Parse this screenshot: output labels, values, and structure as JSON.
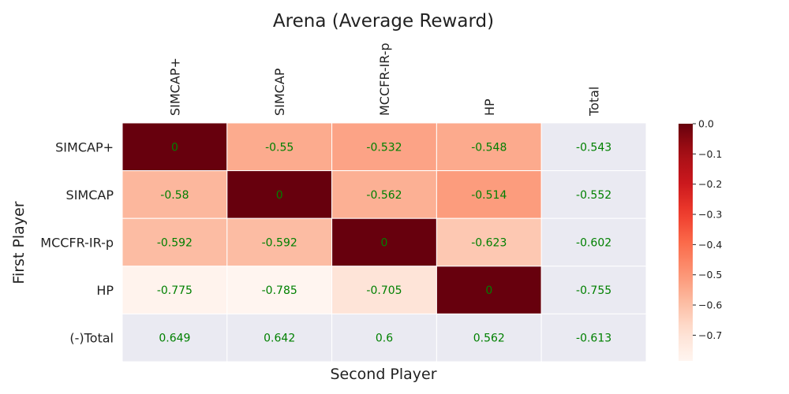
{
  "chart_data": {
    "type": "heatmap",
    "title": "Arena (Average Reward)",
    "xlabel": "Second Player",
    "ylabel": "First Player",
    "x_categories": [
      "SIMCAP+",
      "SIMCAP",
      "MCCFR-IR-p",
      "HP",
      "Total"
    ],
    "y_categories": [
      "SIMCAP+",
      "SIMCAP",
      "MCCFR-IR-p",
      "HP",
      "(-)Total"
    ],
    "values": [
      [
        0,
        -0.55,
        -0.532,
        -0.548
      ],
      [
        -0.58,
        0,
        -0.562,
        -0.514
      ],
      [
        -0.592,
        -0.592,
        0,
        -0.623
      ],
      [
        -0.775,
        -0.785,
        -0.705,
        0
      ]
    ],
    "labels": [
      [
        "0",
        "-0.55",
        "-0.532",
        "-0.548",
        "-0.543"
      ],
      [
        "-0.58",
        "0",
        "-0.562",
        "-0.514",
        "-0.552"
      ],
      [
        "-0.592",
        "-0.592",
        "0",
        "-0.623",
        "-0.602"
      ],
      [
        "-0.775",
        "-0.785",
        "-0.705",
        "0",
        "-0.755"
      ],
      [
        "0.649",
        "0.642",
        "0.6",
        "0.562",
        "-0.613"
      ]
    ],
    "totals_column": [
      -0.543,
      -0.552,
      -0.602,
      -0.755
    ],
    "totals_row": [
      0.649,
      0.642,
      0.6,
      0.562
    ],
    "grand_total": -0.613,
    "colormap": "Reds_r",
    "vmin": -0.785,
    "vmax": 0.0,
    "colorbar_ticks": [
      "0.0",
      "−0.1",
      "−0.2",
      "−0.3",
      "−0.4",
      "−0.5",
      "−0.6",
      "−0.7"
    ],
    "colorbar_tick_values": [
      0.0,
      -0.1,
      -0.2,
      -0.3,
      -0.4,
      -0.5,
      -0.6,
      -0.7
    ],
    "colors": {
      "annotation": "#008000",
      "totals_background": "#eaeaf2",
      "grid_line": "#ffffff"
    }
  }
}
